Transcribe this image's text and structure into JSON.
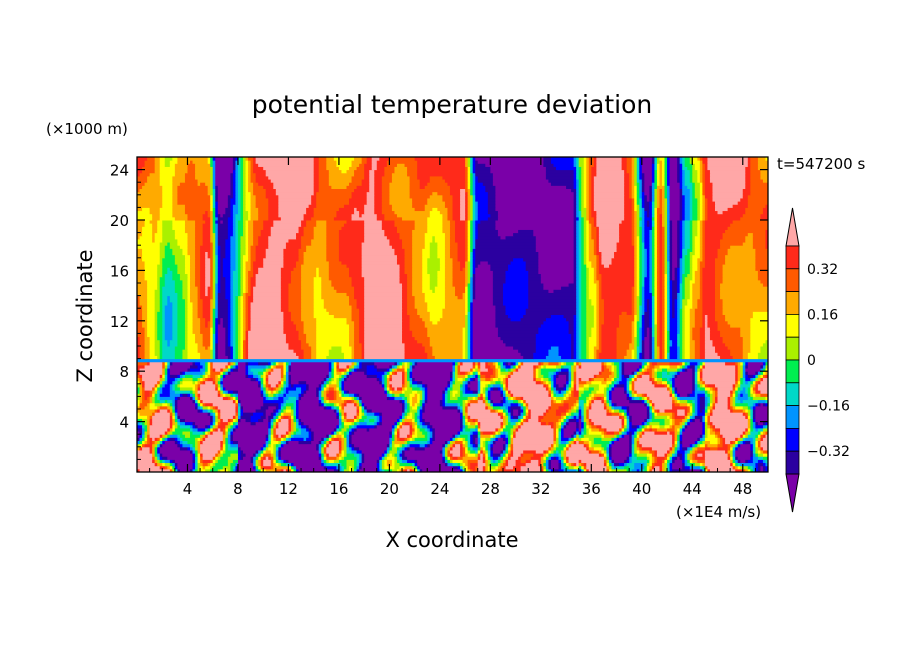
{
  "chart_data": {
    "type": "heatmap",
    "title": "potential temperature deviation",
    "time_label": "t=547200 s",
    "xlabel": "X coordinate",
    "ylabel": "Z coordinate",
    "x_unit": "(×1E4 m/s)",
    "y_unit": "(×1000 m)",
    "xlim": [
      0,
      50
    ],
    "ylim": [
      0,
      25
    ],
    "x_ticks": [
      "4",
      "8",
      "12",
      "16",
      "20",
      "24",
      "28",
      "32",
      "36",
      "40",
      "44",
      "48"
    ],
    "y_ticks": [
      "4",
      "8",
      "12",
      "16",
      "20",
      "24"
    ],
    "colorbar_labels": [
      "0.32",
      "0.16",
      "0",
      "−0.16",
      "−0.32"
    ],
    "levels": [
      -0.4,
      -0.32,
      -0.24,
      -0.16,
      -0.08,
      0,
      0.08,
      0.16,
      0.24,
      0.32,
      0.4
    ],
    "colors": [
      "#7a00a8",
      "#2b00a0",
      "#0000ff",
      "#0094ff",
      "#00d8c8",
      "#00ee50",
      "#aaf000",
      "#ffff00",
      "#ffaa00",
      "#ff5a00",
      "#ff2a1a",
      "#ffa7a7"
    ]
  }
}
